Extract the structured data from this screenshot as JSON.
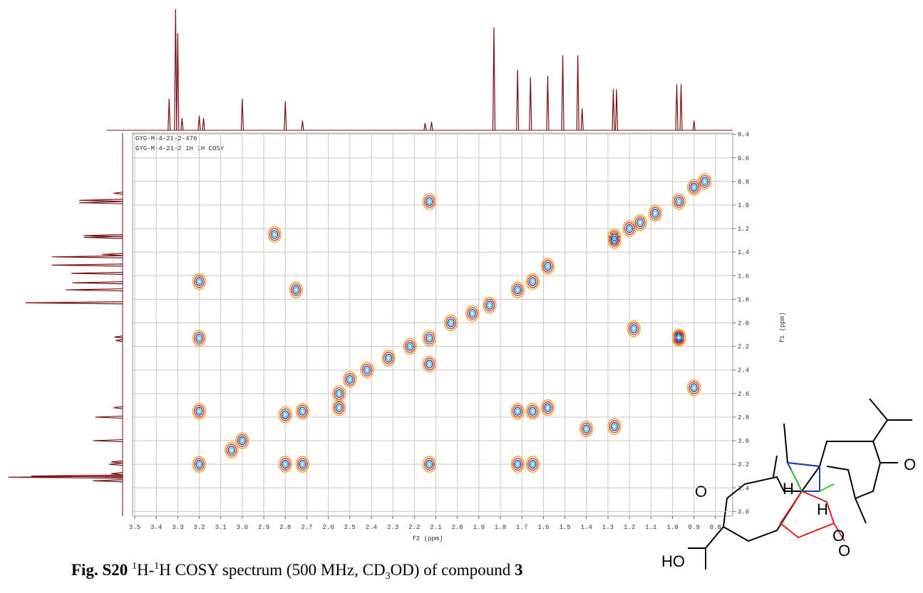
{
  "chart_data": {
    "type": "contour",
    "plot_labels": [
      "GYG-M-4-21-2-476",
      "GYG-M-4-21-2 1H 1H COSY"
    ],
    "xlabel": "f2 (ppm)",
    "ylabel": "f1 (ppm)",
    "xlim": [
      3.51,
      0.72
    ],
    "ylim": [
      0.39,
      3.64
    ],
    "xticks": [
      3.5,
      3.4,
      3.3,
      3.2,
      3.1,
      {
        "value": 3,
        "label": "3.0"
      },
      2.9,
      2.8,
      2.7,
      2.6,
      2.5,
      2.4,
      2.3,
      2.2,
      2.1,
      {
        "value": 2,
        "label": "2.0"
      },
      1.9,
      1.8,
      1.7,
      1.6,
      1.5,
      1.4,
      1.3,
      1.2,
      1.1,
      {
        "value": 1,
        "label": "1.0"
      },
      0.9,
      0.8
    ],
    "yticks": [
      0.4,
      0.6,
      0.8,
      {
        "value": 1,
        "label": "1.0"
      },
      1.2,
      1.4,
      1.6,
      1.8,
      {
        "value": 2,
        "label": "2.0"
      },
      2.2,
      2.4,
      2.6,
      2.8,
      {
        "value": 3,
        "label": "3.0"
      },
      3.2,
      3.4,
      3.6
    ],
    "grid": true,
    "contour_colors": [
      "#f0a020",
      "#e02a1a",
      "#1f3fb0",
      "#28c4d8"
    ],
    "peaks_x": [
      0.97,
      0.9,
      0.85,
      1.27,
      1.2,
      1.15,
      1.08,
      1.58,
      1.65,
      1.72,
      1.85,
      1.93,
      2.03,
      2.13,
      2.22,
      2.32,
      2.42,
      2.5,
      2.55,
      2.72,
      2.8,
      3.0,
      3.05,
      3.2,
      2.13,
      0.97,
      2.85,
      3.2,
      3.2,
      2.8,
      2.72,
      2.55,
      2.13,
      1.72,
      1.65,
      1.58,
      1.72,
      1.65,
      1.27,
      0.97,
      0.9,
      2.75,
      2.13,
      3.2,
      1.27,
      1.18,
      1.4
    ],
    "peaks_y": [
      0.97,
      0.85,
      0.8,
      1.27,
      1.2,
      1.15,
      1.07,
      1.52,
      1.65,
      1.72,
      1.85,
      1.92,
      2.0,
      2.13,
      2.2,
      2.3,
      2.4,
      2.48,
      2.6,
      2.75,
      2.78,
      3.0,
      3.08,
      3.2,
      0.97,
      2.13,
      1.25,
      2.13,
      2.75,
      3.2,
      3.2,
      2.72,
      3.2,
      2.75,
      2.75,
      2.72,
      3.2,
      3.2,
      2.88,
      2.12,
      2.55,
      1.72,
      2.35,
      1.65,
      1.3,
      2.05,
      2.9
    ],
    "projection_color": "#7a0f0f",
    "projection_x": [
      3.34,
      3.31,
      3.3,
      3.28,
      3.2,
      3.18,
      3.0,
      2.8,
      2.72,
      2.15,
      2.12,
      1.83,
      1.72,
      1.66,
      1.58,
      1.51,
      1.44,
      1.42,
      1.275,
      1.26,
      0.98,
      0.96,
      0.9
    ],
    "projection_values": [
      26,
      100,
      80,
      10,
      12,
      10,
      26,
      24,
      8,
      6,
      7,
      85,
      50,
      44,
      45,
      62,
      62,
      18,
      34,
      34,
      38,
      38,
      8
    ]
  },
  "caption": {
    "fig": "Fig. S20",
    "sup1": "1",
    "mid1": "H-",
    "sup2": "1",
    "mid2": "H COSY spectrum (500 MHz, CD",
    "sub": "3",
    "mid3": "OD) of compound ",
    "num": "3"
  },
  "structure": {
    "labels": [
      "O",
      "H",
      "O",
      "H",
      "O",
      "O",
      "HO"
    ]
  }
}
